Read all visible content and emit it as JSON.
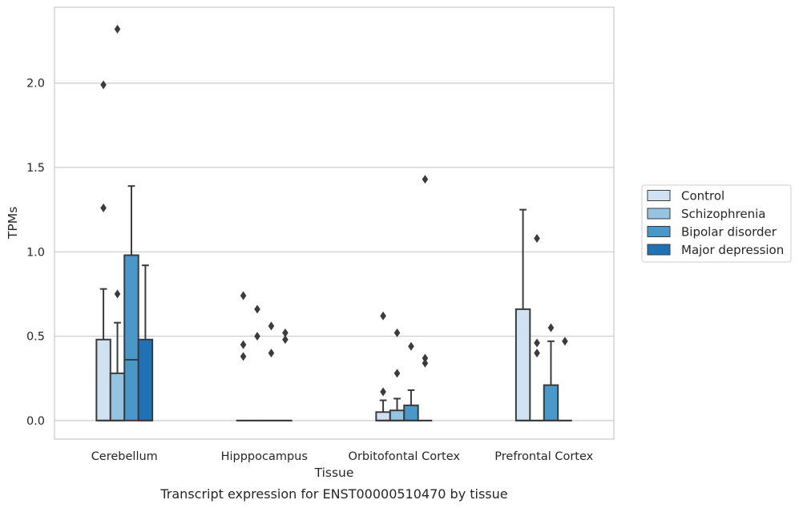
{
  "caption": "Transcript expression for ENST00000510470 by tissue",
  "chart_data": {
    "type": "box",
    "xlabel": "Tissue",
    "ylabel": "TPMs",
    "ylim": [
      -0.11,
      2.45
    ],
    "yticks": [
      "0.0",
      "0.5",
      "1.0",
      "1.5",
      "2.0"
    ],
    "ytick_values": [
      0.0,
      0.5,
      1.0,
      1.5,
      2.0
    ],
    "grid": true,
    "legend_position": "right",
    "categories": [
      "Cerebellum",
      "Hipppocampus",
      "Orbitofontal Cortex",
      "Prefrontal Cortex"
    ],
    "series": [
      {
        "name": "Control",
        "color": "#d0e1f2",
        "boxes": [
          {
            "q1": 0.0,
            "median": 0.0,
            "q3": 0.48,
            "whisker_low": 0.0,
            "whisker_high": 0.78,
            "outliers": [
              1.99,
              1.26
            ]
          },
          {
            "q1": 0.0,
            "median": 0.0,
            "q3": 0.0,
            "whisker_low": 0.0,
            "whisker_high": 0.0,
            "outliers": [
              0.74,
              0.45,
              0.38
            ]
          },
          {
            "q1": 0.0,
            "median": 0.0,
            "q3": 0.05,
            "whisker_low": 0.0,
            "whisker_high": 0.12,
            "outliers": [
              0.62,
              0.17
            ]
          },
          {
            "q1": 0.0,
            "median": 0.0,
            "q3": 0.66,
            "whisker_low": 0.0,
            "whisker_high": 1.25,
            "outliers": []
          }
        ]
      },
      {
        "name": "Schizophrenia",
        "color": "#94c4df",
        "boxes": [
          {
            "q1": 0.0,
            "median": 0.0,
            "q3": 0.28,
            "whisker_low": 0.0,
            "whisker_high": 0.58,
            "outliers": [
              2.32,
              0.75
            ]
          },
          {
            "q1": 0.0,
            "median": 0.0,
            "q3": 0.0,
            "whisker_low": 0.0,
            "whisker_high": 0.0,
            "outliers": [
              0.66,
              0.5
            ]
          },
          {
            "q1": 0.0,
            "median": 0.0,
            "q3": 0.06,
            "whisker_low": 0.0,
            "whisker_high": 0.13,
            "outliers": [
              0.52,
              0.28
            ]
          },
          {
            "q1": 0.0,
            "median": 0.0,
            "q3": 0.0,
            "whisker_low": 0.0,
            "whisker_high": 0.0,
            "outliers": [
              1.08,
              0.46,
              0.4
            ]
          }
        ]
      },
      {
        "name": "Bipolar disorder",
        "color": "#4a98c9",
        "boxes": [
          {
            "q1": 0.0,
            "median": 0.36,
            "q3": 0.98,
            "whisker_low": 0.0,
            "whisker_high": 1.39,
            "outliers": []
          },
          {
            "q1": 0.0,
            "median": 0.0,
            "q3": 0.0,
            "whisker_low": 0.0,
            "whisker_high": 0.0,
            "outliers": [
              0.56,
              0.4
            ]
          },
          {
            "q1": 0.0,
            "median": 0.0,
            "q3": 0.09,
            "whisker_low": 0.0,
            "whisker_high": 0.18,
            "outliers": [
              0.44
            ]
          },
          {
            "q1": 0.0,
            "median": 0.0,
            "q3": 0.21,
            "whisker_low": 0.0,
            "whisker_high": 0.47,
            "outliers": [
              0.55
            ]
          }
        ]
      },
      {
        "name": "Major depression",
        "color": "#2171b5",
        "boxes": [
          {
            "q1": 0.0,
            "median": 0.0,
            "q3": 0.48,
            "whisker_low": 0.0,
            "whisker_high": 0.92,
            "outliers": []
          },
          {
            "q1": 0.0,
            "median": 0.0,
            "q3": 0.0,
            "whisker_low": 0.0,
            "whisker_high": 0.0,
            "outliers": [
              0.52,
              0.48
            ]
          },
          {
            "q1": 0.0,
            "median": 0.0,
            "q3": 0.0,
            "whisker_low": 0.0,
            "whisker_high": 0.0,
            "outliers": [
              1.43,
              0.37,
              0.34
            ]
          },
          {
            "q1": 0.0,
            "median": 0.0,
            "q3": 0.0,
            "whisker_low": 0.0,
            "whisker_high": 0.0,
            "outliers": [
              0.47
            ]
          }
        ]
      }
    ]
  }
}
